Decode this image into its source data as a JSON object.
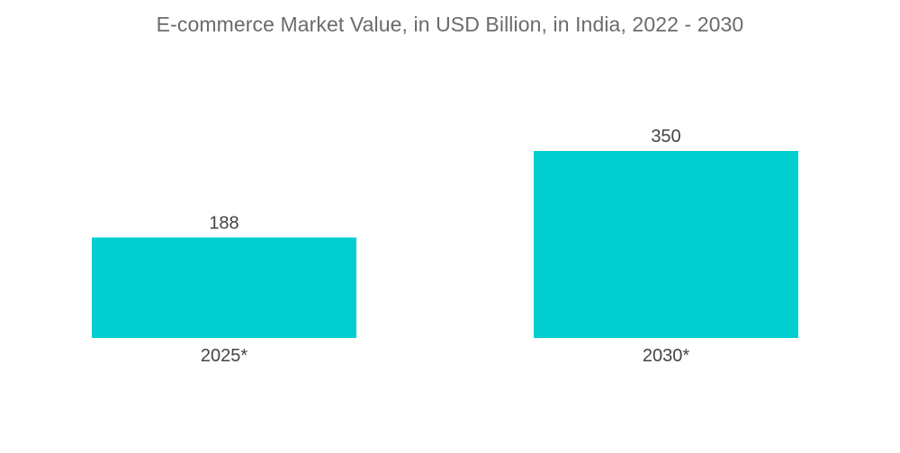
{
  "chart_data": {
    "type": "bar",
    "title": "E-commerce Market Value, in USD Billion, in India, 2022 - 2030",
    "categories": [
      "2025*",
      "2030*"
    ],
    "values": [
      188,
      350
    ],
    "data_labels": [
      "188",
      "350"
    ],
    "xlabel": "",
    "ylabel": "",
    "ylim": [
      0,
      350
    ],
    "grid": false,
    "legend": "none",
    "bar_color": "#00CED1",
    "text_color": "#444444",
    "title_color": "#6B6B6B"
  }
}
